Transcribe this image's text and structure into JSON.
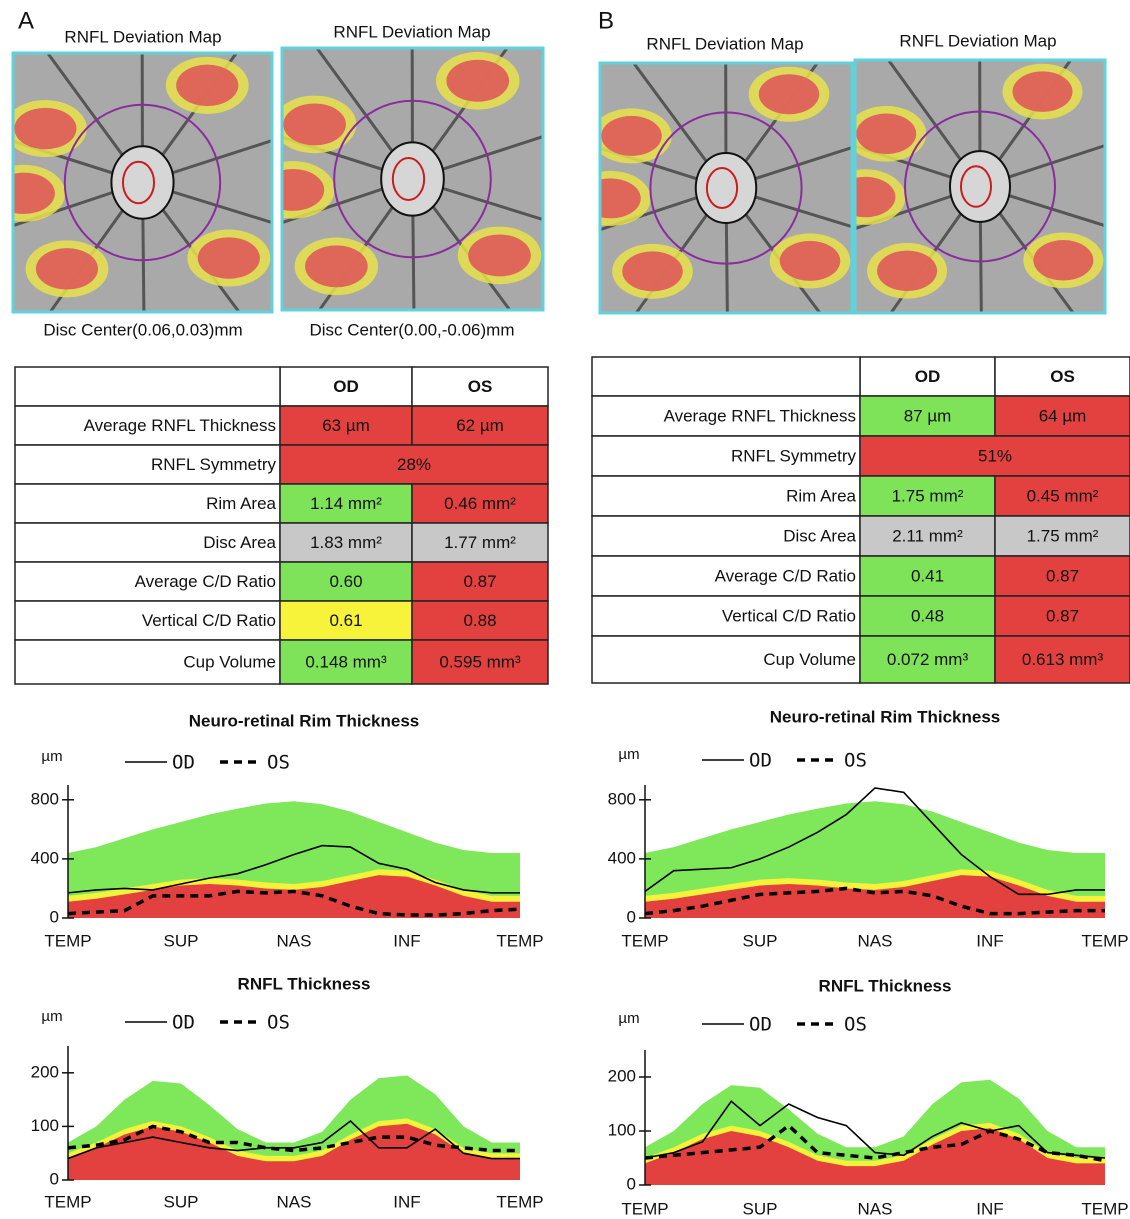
{
  "panels": [
    {
      "label": "A",
      "maps": [
        {
          "title": "RNFL Deviation Map",
          "caption": "Disc Center(0.06,0.03)mm"
        },
        {
          "title": "RNFL Deviation Map",
          "caption": "Disc Center(0.00,-0.06)mm"
        }
      ],
      "table": {
        "header": [
          "OD",
          "OS"
        ],
        "rows": [
          {
            "label": "Average RNFL Thickness",
            "cells": [
              {
                "text": "63 µm",
                "color": "#e2413f"
              },
              {
                "text": "62 µm",
                "color": "#e2413f"
              }
            ]
          },
          {
            "label": "RNFL Symmetry",
            "cells": [
              {
                "text": "28%",
                "color": "#e2413f"
              }
            ]
          },
          {
            "label": "Rim Area",
            "cells": [
              {
                "text": "1.14 mm²",
                "color": "#7fe35a"
              },
              {
                "text": "0.46 mm²",
                "color": "#e2413f"
              }
            ]
          },
          {
            "label": "Disc Area",
            "cells": [
              {
                "text": "1.83 mm²",
                "color": "#c8c8c8"
              },
              {
                "text": "1.77 mm²",
                "color": "#c8c8c8"
              }
            ]
          },
          {
            "label": "Average C/D Ratio",
            "cells": [
              {
                "text": "0.60",
                "color": "#7fe35a"
              },
              {
                "text": "0.87",
                "color": "#e2413f"
              }
            ]
          },
          {
            "label": "Vertical C/D Ratio",
            "cells": [
              {
                "text": "0.61",
                "color": "#f7f23a"
              },
              {
                "text": "0.88",
                "color": "#e2413f"
              }
            ]
          },
          {
            "label": "Cup Volume",
            "cells": [
              {
                "text": "0.148 mm³",
                "color": "#7fe35a"
              },
              {
                "text": "0.595 mm³",
                "color": "#e2413f"
              }
            ]
          }
        ]
      },
      "charts": [
        {
          "type": "line",
          "title": "Neuro-retinal Rim Thickness",
          "y_unit": "µm",
          "xlim": [
            0,
            360
          ],
          "xticks": [
            {
              "value": 0,
              "label": "TEMP"
            },
            {
              "value": 90,
              "label": "SUP"
            },
            {
              "value": 180,
              "label": "NAS"
            },
            {
              "value": 270,
              "label": "INF"
            },
            {
              "value": 360,
              "label": "TEMP"
            }
          ],
          "ylim": [
            0,
            900
          ],
          "yticks": [
            0,
            400,
            800
          ],
          "x": [
            0,
            22.5,
            45,
            67.5,
            90,
            112.5,
            135,
            157.5,
            180,
            202.5,
            225,
            247.5,
            270,
            292.5,
            315,
            337.5,
            360
          ],
          "bands": [
            {
              "color": "#7ee85a",
              "values": [
                440,
                480,
                540,
                600,
                650,
                700,
                740,
                775,
                790,
                770,
                720,
                650,
                580,
                510,
                460,
                440,
                440
              ]
            },
            {
              "color": "#f4f23a",
              "values": [
                150,
                170,
                200,
                230,
                260,
                270,
                260,
                240,
                230,
                250,
                290,
                330,
                320,
                260,
                190,
                150,
                150
              ]
            },
            {
              "color": "#e2413f",
              "values": [
                110,
                130,
                160,
                190,
                220,
                230,
                220,
                200,
                190,
                210,
                250,
                290,
                280,
                220,
                150,
                110,
                110
              ]
            }
          ],
          "series": [
            {
              "name": "OD",
              "color": "#000000",
              "dashed": false,
              "values": [
                170,
                190,
                200,
                190,
                230,
                270,
                300,
                360,
                430,
                490,
                480,
                370,
                330,
                240,
                190,
                170,
                170
              ]
            },
            {
              "name": "OS",
              "color": "#000000",
              "dashed": true,
              "values": [
                30,
                40,
                50,
                150,
                150,
                150,
                180,
                170,
                180,
                150,
                80,
                30,
                20,
                20,
                30,
                50,
                60
              ]
            }
          ]
        },
        {
          "type": "line",
          "title": "RNFL Thickness",
          "y_unit": "µm",
          "xlim": [
            0,
            360
          ],
          "xticks": [
            {
              "value": 0,
              "label": "TEMP"
            },
            {
              "value": 90,
              "label": "SUP"
            },
            {
              "value": 180,
              "label": "NAS"
            },
            {
              "value": 270,
              "label": "INF"
            },
            {
              "value": 360,
              "label": "TEMP"
            }
          ],
          "ylim": [
            0,
            250
          ],
          "yticks": [
            0,
            100,
            200
          ],
          "x": [
            0,
            22.5,
            45,
            67.5,
            90,
            112.5,
            135,
            157.5,
            180,
            202.5,
            225,
            247.5,
            270,
            292.5,
            315,
            337.5,
            360
          ],
          "bands": [
            {
              "color": "#7ee85a",
              "values": [
                70,
                100,
                150,
                185,
                180,
                140,
                95,
                70,
                70,
                90,
                150,
                190,
                195,
                160,
                100,
                70,
                70
              ]
            },
            {
              "color": "#f4f23a",
              "values": [
                50,
                70,
                95,
                110,
                100,
                80,
                55,
                45,
                45,
                55,
                85,
                110,
                115,
                95,
                60,
                50,
                50
              ]
            },
            {
              "color": "#e2413f",
              "values": [
                40,
                60,
                85,
                100,
                90,
                70,
                45,
                35,
                35,
                45,
                75,
                100,
                105,
                85,
                50,
                40,
                40
              ]
            }
          ],
          "series": [
            {
              "name": "OD",
              "color": "#000000",
              "dashed": false,
              "values": [
                40,
                60,
                70,
                80,
                70,
                60,
                55,
                60,
                60,
                70,
                110,
                60,
                60,
                95,
                50,
                40,
                40
              ]
            },
            {
              "name": "OS",
              "color": "#000000",
              "dashed": true,
              "values": [
                60,
                65,
                75,
                100,
                90,
                70,
                70,
                60,
                55,
                60,
                70,
                80,
                80,
                65,
                60,
                55,
                55
              ]
            }
          ]
        }
      ]
    },
    {
      "label": "B",
      "maps": [
        {
          "title": "RNFL Deviation Map"
        },
        {
          "title": "RNFL Deviation Map"
        }
      ],
      "table": {
        "header": [
          "OD",
          "OS"
        ],
        "rows": [
          {
            "label": "Average RNFL Thickness",
            "cells": [
              {
                "text": "87 µm",
                "color": "#7fe35a"
              },
              {
                "text": "64 µm",
                "color": "#e2413f"
              }
            ]
          },
          {
            "label": "RNFL Symmetry",
            "cells": [
              {
                "text": "51%",
                "color": "#e2413f"
              }
            ]
          },
          {
            "label": "Rim Area",
            "cells": [
              {
                "text": "1.75 mm²",
                "color": "#7fe35a"
              },
              {
                "text": "0.45 mm²",
                "color": "#e2413f"
              }
            ]
          },
          {
            "label": "Disc Area",
            "cells": [
              {
                "text": "2.11 mm²",
                "color": "#c8c8c8"
              },
              {
                "text": "1.75 mm²",
                "color": "#c8c8c8"
              }
            ]
          },
          {
            "label": "Average C/D Ratio",
            "cells": [
              {
                "text": "0.41",
                "color": "#7fe35a"
              },
              {
                "text": "0.87",
                "color": "#e2413f"
              }
            ]
          },
          {
            "label": "Vertical C/D Ratio",
            "cells": [
              {
                "text": "0.48",
                "color": "#7fe35a"
              },
              {
                "text": "0.87",
                "color": "#e2413f"
              }
            ]
          },
          {
            "label": "Cup Volume",
            "cells": [
              {
                "text": "0.072 mm³",
                "color": "#7fe35a"
              },
              {
                "text": "0.613 mm³",
                "color": "#e2413f"
              }
            ]
          }
        ]
      },
      "charts": [
        {
          "type": "line",
          "title": "Neuro-retinal Rim Thickness",
          "y_unit": "µm",
          "xlim": [
            0,
            360
          ],
          "xticks": [
            {
              "value": 0,
              "label": "TEMP"
            },
            {
              "value": 90,
              "label": "SUP"
            },
            {
              "value": 180,
              "label": "NAS"
            },
            {
              "value": 270,
              "label": "INF"
            },
            {
              "value": 360,
              "label": "TEMP"
            }
          ],
          "ylim": [
            0,
            900
          ],
          "yticks": [
            0,
            400,
            800
          ],
          "x": [
            0,
            22.5,
            45,
            67.5,
            90,
            112.5,
            135,
            157.5,
            180,
            202.5,
            225,
            247.5,
            270,
            292.5,
            315,
            337.5,
            360
          ],
          "bands": [
            {
              "color": "#7ee85a",
              "values": [
                440,
                480,
                540,
                600,
                650,
                700,
                740,
                775,
                790,
                770,
                720,
                650,
                580,
                510,
                460,
                440,
                440
              ]
            },
            {
              "color": "#f4f23a",
              "values": [
                150,
                170,
                200,
                230,
                260,
                270,
                260,
                240,
                230,
                250,
                290,
                330,
                320,
                260,
                190,
                150,
                150
              ]
            },
            {
              "color": "#e2413f",
              "values": [
                110,
                130,
                160,
                190,
                220,
                230,
                220,
                200,
                190,
                210,
                250,
                290,
                280,
                220,
                150,
                110,
                110
              ]
            }
          ],
          "series": [
            {
              "name": "OD",
              "color": "#000000",
              "dashed": false,
              "values": [
                180,
                320,
                330,
                340,
                400,
                480,
                580,
                700,
                880,
                850,
                640,
                430,
                280,
                160,
                160,
                190,
                190
              ]
            },
            {
              "name": "OS",
              "color": "#000000",
              "dashed": true,
              "values": [
                30,
                50,
                80,
                120,
                160,
                170,
                180,
                200,
                170,
                180,
                150,
                80,
                30,
                30,
                40,
                50,
                50
              ]
            }
          ]
        },
        {
          "type": "line",
          "title": "RNFL Thickness",
          "y_unit": "µm",
          "xlim": [
            0,
            360
          ],
          "xticks": [
            {
              "value": 0,
              "label": "TEMP"
            },
            {
              "value": 90,
              "label": "SUP"
            },
            {
              "value": 180,
              "label": "NAS"
            },
            {
              "value": 270,
              "label": "INF"
            },
            {
              "value": 360,
              "label": "TEMP"
            }
          ],
          "ylim": [
            0,
            250
          ],
          "yticks": [
            0,
            100,
            200
          ],
          "x": [
            0,
            22.5,
            45,
            67.5,
            90,
            112.5,
            135,
            157.5,
            180,
            202.5,
            225,
            247.5,
            270,
            292.5,
            315,
            337.5,
            360
          ],
          "bands": [
            {
              "color": "#7ee85a",
              "values": [
                70,
                100,
                150,
                185,
                180,
                140,
                95,
                70,
                70,
                90,
                150,
                190,
                195,
                160,
                100,
                70,
                70
              ]
            },
            {
              "color": "#f4f23a",
              "values": [
                50,
                70,
                95,
                110,
                100,
                80,
                55,
                45,
                45,
                55,
                85,
                110,
                115,
                95,
                60,
                50,
                50
              ]
            },
            {
              "color": "#e2413f",
              "values": [
                40,
                60,
                85,
                100,
                90,
                70,
                45,
                35,
                35,
                45,
                75,
                100,
                105,
                85,
                50,
                40,
                40
              ]
            }
          ],
          "series": [
            {
              "name": "OD",
              "color": "#000000",
              "dashed": false,
              "values": [
                50,
                60,
                80,
                155,
                110,
                150,
                125,
                110,
                60,
                55,
                90,
                115,
                100,
                110,
                60,
                55,
                50
              ]
            },
            {
              "name": "OS",
              "color": "#000000",
              "dashed": true,
              "values": [
                50,
                55,
                60,
                65,
                70,
                110,
                60,
                55,
                50,
                60,
                70,
                75,
                100,
                85,
                60,
                55,
                45
              ]
            }
          ]
        }
      ]
    }
  ]
}
